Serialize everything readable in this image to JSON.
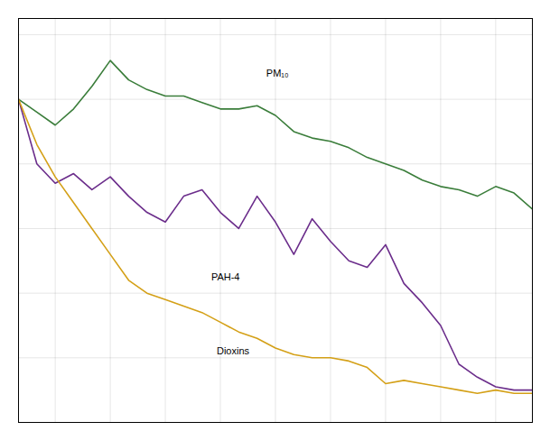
{
  "chart_data": {
    "type": "line",
    "x": [
      1990,
      1991,
      1992,
      1993,
      1994,
      1995,
      1996,
      1997,
      1998,
      1999,
      2000,
      2001,
      2002,
      2003,
      2004,
      2005,
      2006,
      2007,
      2008,
      2009,
      2010,
      2011,
      2012,
      2013,
      2014,
      2015,
      2016,
      2017,
      2018
    ],
    "series": [
      {
        "name": "PM₁₀",
        "color": "#3a7d3a",
        "values": [
          1.0,
          0.96,
          0.92,
          0.97,
          1.04,
          1.12,
          1.06,
          1.03,
          1.01,
          1.01,
          0.99,
          0.97,
          0.97,
          0.98,
          0.95,
          0.9,
          0.88,
          0.87,
          0.85,
          0.82,
          0.8,
          0.78,
          0.75,
          0.73,
          0.72,
          0.7,
          0.73,
          0.71,
          0.66
        ]
      },
      {
        "name": "PAH-4",
        "color": "#6b2d8b",
        "values": [
          1.0,
          0.8,
          0.74,
          0.77,
          0.72,
          0.76,
          0.7,
          0.65,
          0.62,
          0.7,
          0.72,
          0.65,
          0.6,
          0.7,
          0.62,
          0.52,
          0.63,
          0.56,
          0.5,
          0.48,
          0.55,
          0.43,
          0.37,
          0.3,
          0.18,
          0.14,
          0.11,
          0.1,
          0.1
        ]
      },
      {
        "name": "Dioxins",
        "color": "#d4a017",
        "values": [
          1.0,
          0.86,
          0.76,
          0.68,
          0.6,
          0.52,
          0.44,
          0.4,
          0.38,
          0.36,
          0.34,
          0.31,
          0.28,
          0.26,
          0.23,
          0.21,
          0.2,
          0.2,
          0.19,
          0.17,
          0.12,
          0.13,
          0.12,
          0.11,
          0.1,
          0.09,
          0.1,
          0.09,
          0.09
        ]
      }
    ],
    "annotations": [
      {
        "text": "PM₁₀",
        "x": 2003.5,
        "y": 1.07
      },
      {
        "text": "PAH-4",
        "x": 2000.5,
        "y": 0.44
      },
      {
        "text": "Dioxins",
        "x": 2000.8,
        "y": 0.21
      }
    ],
    "xlim": [
      1990,
      2018
    ],
    "xticks": [
      1992,
      1995,
      1998,
      2001,
      2004,
      2007,
      2010,
      2013,
      2016
    ],
    "ylim": [
      0.0,
      1.25
    ],
    "yticks": [
      0,
      0.2,
      0.4,
      0.6,
      0.8,
      1.0,
      1.2
    ],
    "grid": true,
    "tick_labels": false
  }
}
